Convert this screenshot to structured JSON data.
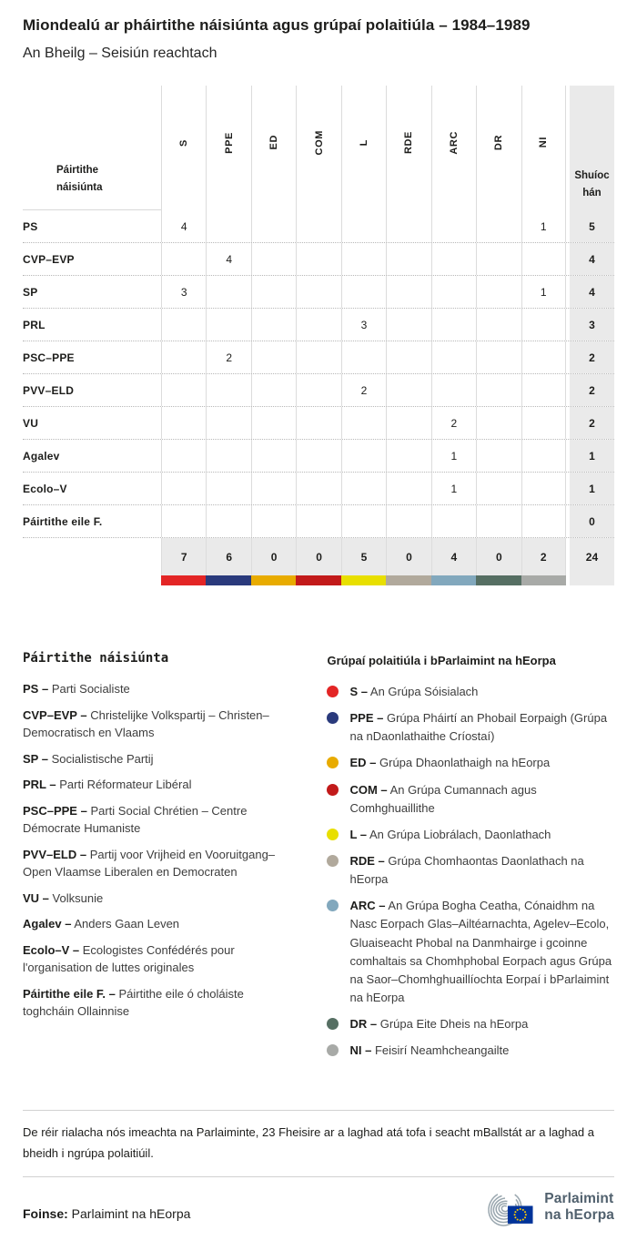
{
  "page": {
    "title": "Miondealú ar pháirtithe náisiúnta agus grúpaí polaitiúla – 1984–1989",
    "subtitle": "An Bheilg – Seisiún reachtach"
  },
  "table": {
    "row_header_label": "Páirtithe náisiúnta",
    "seats_header_label": "Shuíochán",
    "groups": [
      {
        "code": "S",
        "color": "#e32525"
      },
      {
        "code": "PPE",
        "color": "#2a3a7c"
      },
      {
        "code": "ED",
        "color": "#e8ab00"
      },
      {
        "code": "COM",
        "color": "#c21a1a"
      },
      {
        "code": "L",
        "color": "#e8df00"
      },
      {
        "code": "RDE",
        "color": "#b1a99c"
      },
      {
        "code": "ARC",
        "color": "#82a8bd"
      },
      {
        "code": "DR",
        "color": "#566f63"
      },
      {
        "code": "NI",
        "color": "#a8aaa7"
      }
    ],
    "rows": [
      {
        "party": "PS",
        "values": [
          "4",
          "",
          "",
          "",
          "",
          "",
          "",
          "",
          "1"
        ],
        "seats": "5"
      },
      {
        "party": "CVP–EVP",
        "values": [
          "",
          "4",
          "",
          "",
          "",
          "",
          "",
          "",
          ""
        ],
        "seats": "4"
      },
      {
        "party": "SP",
        "values": [
          "3",
          "",
          "",
          "",
          "",
          "",
          "",
          "",
          "1"
        ],
        "seats": "4"
      },
      {
        "party": "PRL",
        "values": [
          "",
          "",
          "",
          "",
          "3",
          "",
          "",
          "",
          ""
        ],
        "seats": "3"
      },
      {
        "party": "PSC–PPE",
        "values": [
          "",
          "2",
          "",
          "",
          "",
          "",
          "",
          "",
          ""
        ],
        "seats": "2"
      },
      {
        "party": "PVV–ELD",
        "values": [
          "",
          "",
          "",
          "",
          "2",
          "",
          "",
          "",
          ""
        ],
        "seats": "2"
      },
      {
        "party": "VU",
        "values": [
          "",
          "",
          "",
          "",
          "",
          "",
          "2",
          "",
          ""
        ],
        "seats": "2"
      },
      {
        "party": "Agalev",
        "values": [
          "",
          "",
          "",
          "",
          "",
          "",
          "1",
          "",
          ""
        ],
        "seats": "1"
      },
      {
        "party": "Ecolo–V",
        "values": [
          "",
          "",
          "",
          "",
          "",
          "",
          "1",
          "",
          ""
        ],
        "seats": "1"
      },
      {
        "party": "Páirtithe eile F.",
        "values": [
          "",
          "",
          "",
          "",
          "",
          "",
          "",
          "",
          ""
        ],
        "seats": "0"
      }
    ],
    "totals": {
      "values": [
        "7",
        "6",
        "0",
        "0",
        "5",
        "0",
        "4",
        "0",
        "2"
      ],
      "seats": "24"
    }
  },
  "legend_parties": {
    "title": "Páirtithe náisiúnta",
    "items": [
      {
        "term": "PS –",
        "desc": "Parti Socialiste"
      },
      {
        "term": "CVP–EVP –",
        "desc": "Christelijke Volkspartij – Christen–Democratisch en Vlaams"
      },
      {
        "term": "SP –",
        "desc": "Socialistische Partij"
      },
      {
        "term": "PRL –",
        "desc": "Parti Réformateur Libéral"
      },
      {
        "term": "PSC–PPE –",
        "desc": "Parti Social Chrétien – Centre Démocrate Humaniste"
      },
      {
        "term": "PVV–ELD –",
        "desc": "Partij voor Vrijheid en Vooruitgang–Open Vlaamse Liberalen en Democraten"
      },
      {
        "term": "VU –",
        "desc": "Volksunie"
      },
      {
        "term": "Agalev –",
        "desc": "Anders Gaan Leven"
      },
      {
        "term": "Ecolo–V –",
        "desc": "Ecologistes Confédérés pour l'organisation de luttes originales"
      },
      {
        "term": "Páirtithe eile F. –",
        "desc": "Páirtithe eile ó choláiste toghcháin Ollainnise"
      }
    ]
  },
  "legend_groups": {
    "title": "Grúpaí polaitiúla i bParlaimint na hEorpa",
    "items": [
      {
        "term": "S –",
        "color": "#e32525",
        "desc": "An Grúpa Sóisialach"
      },
      {
        "term": "PPE –",
        "color": "#2a3a7c",
        "desc": "Grúpa Pháirtí an Phobail Eorpaigh (Grúpa na nDaonlathaithe Críostaí)"
      },
      {
        "term": "ED –",
        "color": "#e8ab00",
        "desc": "Grúpa Dhaonlathaigh na hEorpa"
      },
      {
        "term": "COM –",
        "color": "#c21a1a",
        "desc": "An Grúpa Cumannach agus Comhghuaillithe"
      },
      {
        "term": "L –",
        "color": "#e8df00",
        "desc": "An Grúpa Liobrálach, Daonlathach"
      },
      {
        "term": "RDE –",
        "color": "#b1a99c",
        "desc": "Grúpa Chomhaontas Daonlathach na hEorpa"
      },
      {
        "term": "ARC –",
        "color": "#82a8bd",
        "desc": "An Grúpa Bogha Ceatha, Cónaidhm na Nasc Eorpach Glas–Ailtéarnachta, Agelev–Ecolo, Gluaiseacht Phobal na Danmhairge i gcoinne comhaltais sa Chomhphobal Eorpach agus Grúpa na Saor–Chomhghuaillíochta Eorpaí i bParlaimint na hEorpa"
      },
      {
        "term": "DR –",
        "color": "#566f63",
        "desc": "Grúpa Eite Dheis na hEorpa"
      },
      {
        "term": "NI –",
        "color": "#a8aaa7",
        "desc": "Feisirí Neamhcheangailte"
      }
    ]
  },
  "footer": {
    "note": "De réir rialacha nós imeachta na Parlaiminte, 23 Fheisire ar a laghad atá tofa i seacht mBallstát ar a laghad a bheidh i ngrúpa polaitiúil.",
    "source_label": "Foinse:",
    "source_value": "Parlaimint na hEorpa",
    "logo_text_line1": "Parlaimint",
    "logo_text_line2": "na hEorpa"
  },
  "chart_data": {
    "type": "table",
    "title": "Miondealú ar pháirtithe náisiúnta agus grúpaí polaitiúla – 1984–1989",
    "subtitle": "An Bheilg – Seisiún reachtach",
    "columns": [
      "S",
      "PPE",
      "ED",
      "COM",
      "L",
      "RDE",
      "ARC",
      "DR",
      "NI",
      "Shuíochán"
    ],
    "rows": [
      {
        "party": "PS",
        "S": 4,
        "NI": 1,
        "seats": 5
      },
      {
        "party": "CVP–EVP",
        "PPE": 4,
        "seats": 4
      },
      {
        "party": "SP",
        "S": 3,
        "NI": 1,
        "seats": 4
      },
      {
        "party": "PRL",
        "L": 3,
        "seats": 3
      },
      {
        "party": "PSC–PPE",
        "PPE": 2,
        "seats": 2
      },
      {
        "party": "PVV–ELD",
        "L": 2,
        "seats": 2
      },
      {
        "party": "VU",
        "ARC": 2,
        "seats": 2
      },
      {
        "party": "Agalev",
        "ARC": 1,
        "seats": 1
      },
      {
        "party": "Ecolo–V",
        "ARC": 1,
        "seats": 1
      },
      {
        "party": "Páirtithe eile F.",
        "seats": 0
      }
    ],
    "totals": {
      "S": 7,
      "PPE": 6,
      "ED": 0,
      "COM": 0,
      "L": 5,
      "RDE": 0,
      "ARC": 4,
      "DR": 0,
      "NI": 2,
      "seats": 24
    }
  }
}
